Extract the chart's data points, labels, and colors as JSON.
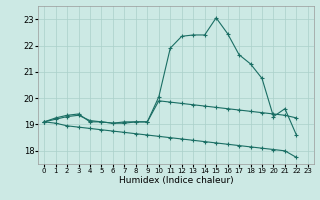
{
  "xlabel": "Humidex (Indice chaleur)",
  "bg_color": "#cce9e4",
  "line_color": "#1a6e64",
  "grid_color": "#aad0ca",
  "xlim": [
    -0.5,
    23.5
  ],
  "ylim": [
    17.5,
    23.5
  ],
  "yticks": [
    18,
    19,
    20,
    21,
    22,
    23
  ],
  "xticks": [
    0,
    1,
    2,
    3,
    4,
    5,
    6,
    7,
    8,
    9,
    10,
    11,
    12,
    13,
    14,
    15,
    16,
    17,
    18,
    19,
    20,
    21,
    22,
    23
  ],
  "line1_x": [
    0,
    1,
    2,
    3,
    4,
    5,
    6,
    7,
    8,
    9,
    10,
    11,
    12,
    13,
    14,
    15,
    16,
    17,
    18,
    19,
    20,
    21,
    22
  ],
  "line1_y": [
    19.1,
    19.25,
    19.35,
    19.4,
    19.1,
    19.1,
    19.05,
    19.1,
    19.1,
    19.1,
    20.05,
    21.9,
    22.35,
    22.4,
    22.4,
    23.05,
    22.45,
    21.65,
    21.3,
    20.75,
    19.3,
    19.6,
    18.6
  ],
  "line2_x": [
    0,
    1,
    2,
    3,
    4,
    5,
    6,
    7,
    8,
    9,
    10,
    11,
    12,
    13,
    14,
    15,
    16,
    17,
    18,
    19,
    20,
    21,
    22
  ],
  "line2_y": [
    19.1,
    19.2,
    19.3,
    19.35,
    19.15,
    19.1,
    19.05,
    19.05,
    19.1,
    19.1,
    19.9,
    19.85,
    19.8,
    19.75,
    19.7,
    19.65,
    19.6,
    19.55,
    19.5,
    19.45,
    19.4,
    19.35,
    19.25
  ],
  "line3_x": [
    0,
    1,
    2,
    3,
    4,
    5,
    6,
    7,
    8,
    9,
    10,
    11,
    12,
    13,
    14,
    15,
    16,
    17,
    18,
    19,
    20,
    21,
    22
  ],
  "line3_y": [
    19.1,
    19.05,
    18.95,
    18.9,
    18.85,
    18.8,
    18.75,
    18.7,
    18.65,
    18.6,
    18.55,
    18.5,
    18.45,
    18.4,
    18.35,
    18.3,
    18.25,
    18.2,
    18.15,
    18.1,
    18.05,
    18.0,
    17.75
  ]
}
